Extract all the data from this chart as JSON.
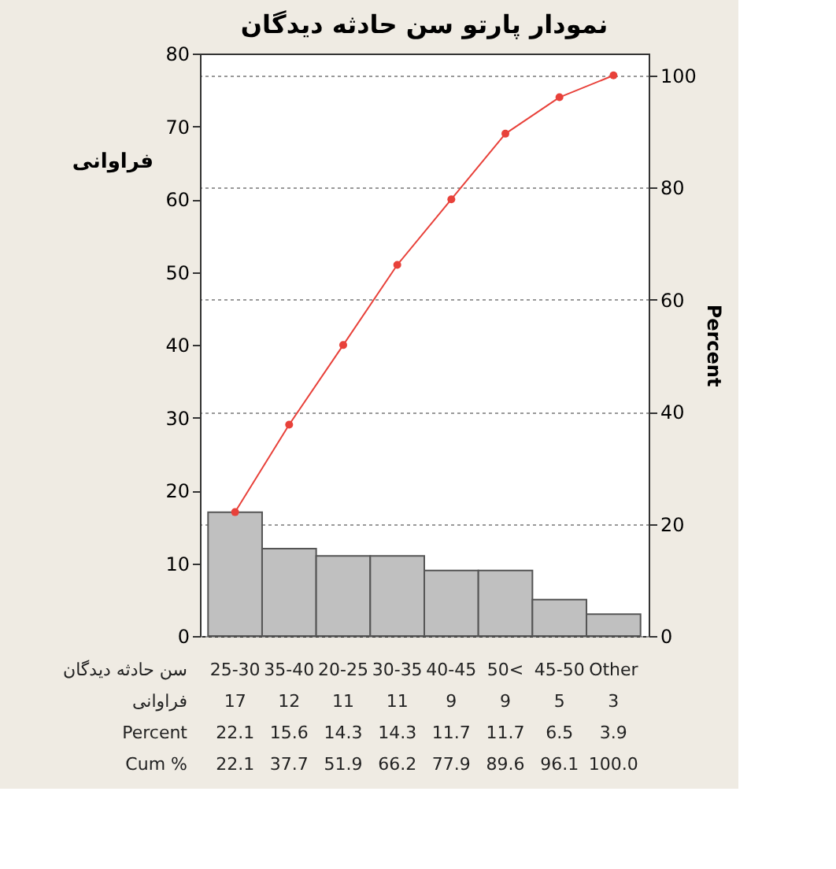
{
  "chart_data": {
    "type": "bar",
    "title": "نمودار پارتو سن حادثه دیدگان",
    "xlabel": "سن حادثه دیدگان",
    "ylabel": "فراوانی",
    "y2label": "Percent",
    "categories": [
      "25-30",
      "35-40",
      "20-25",
      "30-35",
      "40-45",
      "50<",
      "45-50",
      "Other"
    ],
    "series": [
      {
        "color": "#c0c0c0",
        "values": [
          17,
          12,
          11,
          11,
          9,
          9,
          5,
          3
        ]
      },
      {
        "type": "line",
        "axis": "y2",
        "color": "#e8413a",
        "marker": "circle",
        "values": [
          22.1,
          37.7,
          51.9,
          66.2,
          77.9,
          89.6,
          96.1,
          100.0
        ],
        "value_labels": [
          "22.1",
          "37.7",
          "51.9",
          "66.2",
          "77.9",
          "89.6",
          "96.1",
          "100.0"
        ]
      }
    ],
    "data_labels": true,
    "ylim": [
      0,
      80
    ],
    "yticks": [
      0,
      10,
      20,
      30,
      40,
      50,
      60,
      70,
      80
    ],
    "y2lim": [
      0,
      103.9
    ],
    "y2ticks": [
      0,
      20,
      40,
      60,
      80,
      100
    ],
    "grid": true,
    "annotations": [
      "فراوانی",
      "Percent",
      "Cum %",
      "22.1",
      "15.6",
      "14.3",
      "14.3",
      "11.7",
      "11.7",
      "6.5",
      "3.9"
    ]
  }
}
